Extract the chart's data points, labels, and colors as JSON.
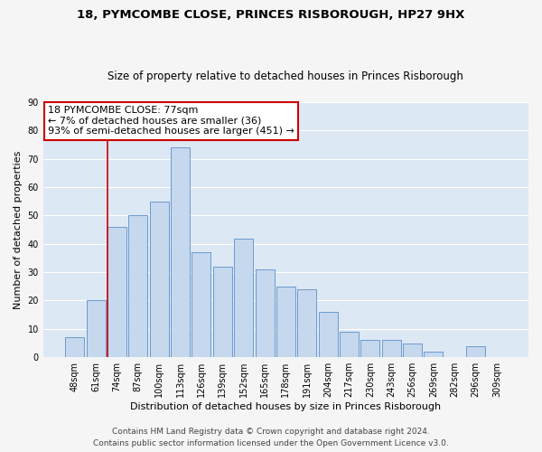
{
  "title": "18, PYMCOMBE CLOSE, PRINCES RISBOROUGH, HP27 9HX",
  "subtitle": "Size of property relative to detached houses in Princes Risborough",
  "xlabel": "Distribution of detached houses by size in Princes Risborough",
  "ylabel": "Number of detached properties",
  "bar_labels": [
    "48sqm",
    "61sqm",
    "74sqm",
    "87sqm",
    "100sqm",
    "113sqm",
    "126sqm",
    "139sqm",
    "152sqm",
    "165sqm",
    "178sqm",
    "191sqm",
    "204sqm",
    "217sqm",
    "230sqm",
    "243sqm",
    "256sqm",
    "269sqm",
    "282sqm",
    "296sqm",
    "309sqm"
  ],
  "bar_values": [
    7,
    20,
    46,
    50,
    55,
    74,
    37,
    32,
    42,
    31,
    25,
    24,
    16,
    9,
    6,
    6,
    5,
    2,
    0,
    4,
    0
  ],
  "bar_color": "#c5d8ee",
  "bar_edge_color": "#5b8fc9",
  "bg_color": "#dde8f5",
  "grid_color": "#ffffff",
  "vline_color": "#cc0000",
  "vline_index": 2,
  "annotation_line1": "18 PYMCOMBE CLOSE: 77sqm",
  "annotation_line2": "← 7% of detached houses are smaller (36)",
  "annotation_line3": "93% of semi-detached houses are larger (451) →",
  "annotation_box_facecolor": "#ffffff",
  "annotation_box_edgecolor": "#cc0000",
  "footer_text": "Contains HM Land Registry data © Crown copyright and database right 2024.\nContains public sector information licensed under the Open Government Licence v3.0.",
  "fig_facecolor": "#f5f5f5",
  "ylim": [
    0,
    90
  ],
  "yticks": [
    0,
    10,
    20,
    30,
    40,
    50,
    60,
    70,
    80,
    90
  ],
  "title_fontsize": 9.5,
  "subtitle_fontsize": 8.5,
  "xlabel_fontsize": 8,
  "ylabel_fontsize": 8,
  "tick_fontsize": 7,
  "footer_fontsize": 6.5,
  "annotation_fontsize": 8
}
